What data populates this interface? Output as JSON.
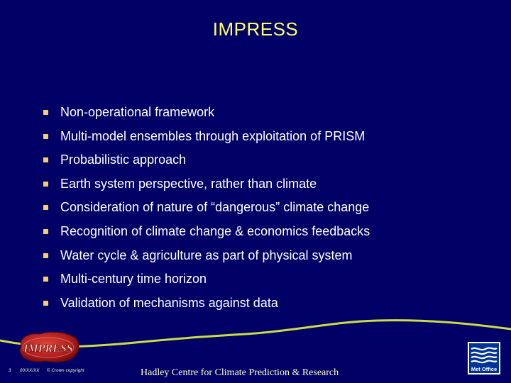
{
  "slide": {
    "title": "IMPRESS",
    "bullets": [
      "Non-operational framework",
      "Multi-model ensembles through exploitation of PRISM",
      "Probabilistic approach",
      "Earth system perspective, rather than climate",
      "Consideration of nature of “dangerous” climate change",
      "Recognition of climate change & economics feedbacks",
      "Water cycle & agriculture as part of physical system",
      "Multi-century time horizon",
      "Validation of mechanisms against data"
    ]
  },
  "footer": {
    "page_number": "3",
    "date_code": "00/XX/XX",
    "copyright": "© Crown copyright",
    "organisation": "Hadley Centre for Climate Prediction & Research"
  },
  "logos": {
    "project_logo_text": "IMPRESS",
    "brand_logo_text": "Met Office"
  },
  "colors": {
    "background": "#000066",
    "title": "#FFFF66",
    "bullet_marker": "#FFCC66",
    "text": "#FFFFFF",
    "wave": "#CCDD44"
  }
}
